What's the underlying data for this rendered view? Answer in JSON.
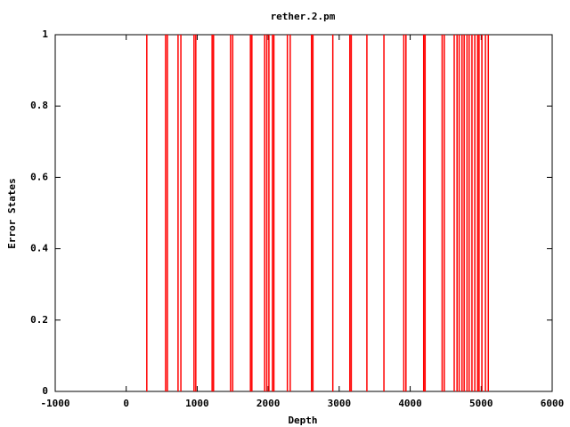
{
  "chart_data": {
    "type": "impulses",
    "title": "rether.2.pm",
    "x_label": "Depth",
    "y_label": "Error States",
    "x": [
      290,
      555,
      580,
      730,
      770,
      955,
      980,
      1210,
      1230,
      1470,
      1500,
      1750,
      1770,
      1950,
      1980,
      2010,
      2060,
      2080,
      2270,
      2310,
      2610,
      2630,
      2910,
      3150,
      3170,
      3390,
      3630,
      3910,
      3940,
      4190,
      4210,
      4450,
      4480,
      4620,
      4660,
      4690,
      4730,
      4760,
      4800,
      4830,
      4870,
      4910,
      4950,
      4970,
      5010,
      5060,
      5100
    ],
    "values": [
      1,
      1,
      1,
      1,
      1,
      1,
      1,
      1,
      1,
      1,
      1,
      1,
      1,
      1,
      1,
      1,
      1,
      1,
      1,
      1,
      1,
      1,
      1,
      1,
      1,
      1,
      1,
      1,
      1,
      1,
      1,
      1,
      1,
      1,
      1,
      1,
      1,
      1,
      1,
      1,
      1,
      1,
      1,
      1,
      1,
      1,
      1
    ],
    "color": "#ff0000",
    "xlim": [
      -1000,
      6000
    ],
    "xticks": [
      -1000,
      0,
      1000,
      2000,
      3000,
      4000,
      5000,
      6000
    ],
    "ylim": [
      0,
      1
    ],
    "yticks": [
      0,
      0.2,
      0.4,
      0.6,
      0.8,
      1
    ]
  }
}
